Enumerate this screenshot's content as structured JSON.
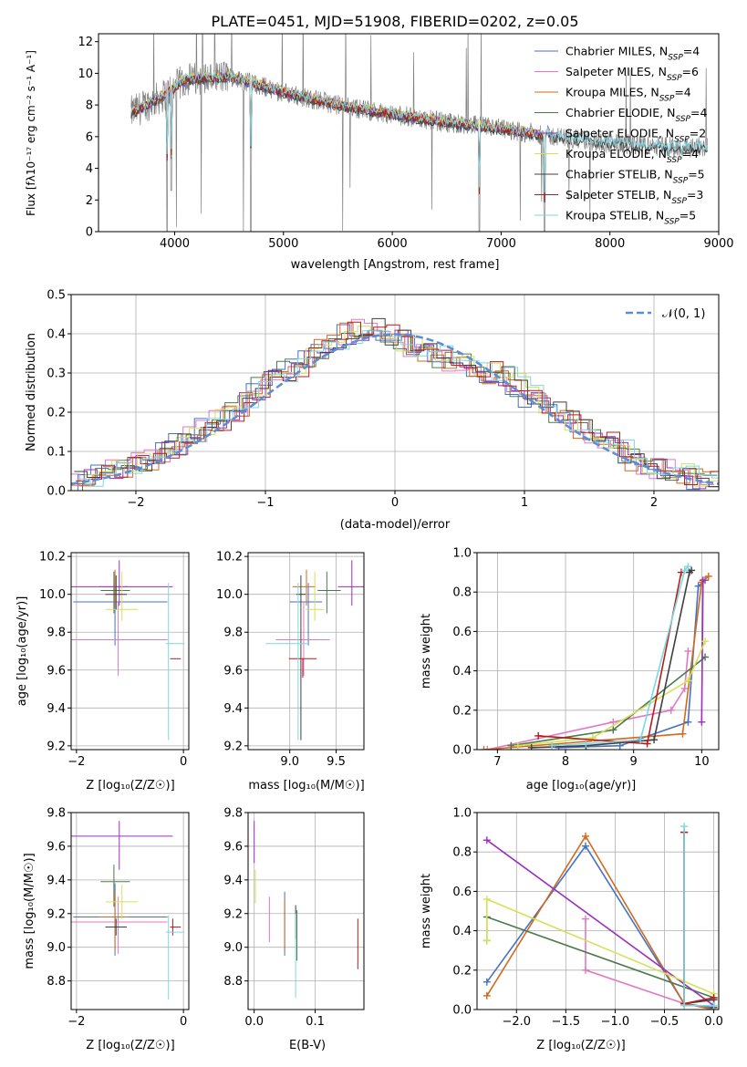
{
  "title": "PLATE=0451, MJD=51908, FIBERID=0202, z=0.05",
  "colors": [
    "#4472c4",
    "#e377c2",
    "#d2691e",
    "#4b7a4b",
    "#9b30c0",
    "#d4e157",
    "#3f3f3f",
    "#b71c1c",
    "#7fd6e0"
  ],
  "legend": [
    "Chabrier MILES, N_SSP=4",
    "Salpeter MILES, N_SSP=6",
    "Kroupa MILES, N_SSP=4",
    "Chabrier ELODIE, N_SSP=4",
    "Salpeter ELODIE, N_SSP=2",
    "Kroupa ELODIE, N_SSP=4",
    "Chabrier STELIB, N_SSP=5",
    "Salpeter STELIB, N_SSP=3",
    "Kroupa STELIB, N_SSP=5"
  ],
  "labels": {
    "p1_x": "wavelength [Angstrom, rest frame]",
    "p1_y": "Flux [fλ10⁻¹⁷ erg cm⁻² s⁻¹ A⁻¹]",
    "p2_x": "(data-model)/error",
    "p2_y": "Normed distribution",
    "p2_legend": "𝒩(0, 1)",
    "p3_x": "Z [log₁₀(Z/Z☉)]",
    "p3_y": "age  [log₁₀(age/yr)]",
    "p4_x": "mass [log₁₀(M/M☉)]",
    "p5_x": "age  [log₁₀(age/yr)]",
    "p5_y": "mass weight",
    "p6_x": "Z [log₁₀(Z/Z☉)]",
    "p6_y": "mass [log₁₀(M/M☉)]",
    "p7_x": "E(B-V)",
    "p8_x": "Z [log₁₀(Z/Z☉)]",
    "p8_y": "mass weight"
  },
  "chart_data": [
    {
      "type": "line",
      "title": "PLATE=0451, MJD=51908, FIBERID=0202, z=0.05",
      "xlabel": "wavelength [Angstrom, rest frame]",
      "ylabel": "Flux [fλ10⁻¹⁷ erg cm⁻² s⁻¹ A⁻¹]",
      "xlim": [
        3300,
        9000
      ],
      "ylim": [
        0,
        12.5
      ],
      "xticks": [
        4000,
        5000,
        6000,
        7000,
        8000,
        9000
      ],
      "yticks": [
        0,
        2,
        4,
        6,
        8,
        10,
        12
      ],
      "data_spectrum_color": "#808080",
      "continuum": {
        "x": [
          3600,
          3900,
          4100,
          4500,
          5000,
          5500,
          6000,
          6500,
          7000,
          7400,
          7600,
          8000,
          8400,
          8900
        ],
        "y": [
          7.5,
          8.6,
          9.6,
          9.8,
          8.8,
          8.0,
          7.4,
          6.9,
          6.5,
          6.1,
          5.9,
          5.6,
          5.4,
          5.3
        ]
      },
      "model_extents": [
        [
          3600,
          7400
        ],
        [
          3600,
          7400
        ],
        [
          3600,
          7400
        ],
        [
          3600,
          7400
        ],
        [
          3600,
          7400
        ],
        [
          3600,
          7400
        ],
        [
          3600,
          8900
        ],
        [
          3600,
          7400
        ],
        [
          3600,
          8900
        ]
      ],
      "dips": [
        {
          "x": 3930,
          "y": 0.0
        },
        {
          "x": 3968,
          "y": 2.6
        },
        {
          "x": 4700,
          "y": 0.0
        },
        {
          "x": 6800,
          "y": 0.0
        },
        {
          "x": 7400,
          "y": 0.0
        },
        {
          "x": 8540,
          "y": 4.8
        },
        {
          "x": 8660,
          "y": 4.9
        }
      ],
      "legend": [
        "Chabrier MILES, N_SSP=4",
        "Salpeter MILES, N_SSP=6",
        "Kroupa MILES, N_SSP=4",
        "Chabrier ELODIE, N_SSP=4",
        "Salpeter ELODIE, N_SSP=2",
        "Kroupa ELODIE, N_SSP=4",
        "Chabrier STELIB, N_SSP=5",
        "Salpeter STELIB, N_SSP=3",
        "Kroupa STELIB, N_SSP=5"
      ],
      "legend_position": "top-right"
    },
    {
      "type": "area",
      "xlabel": "(data-model)/error",
      "ylabel": "Normed distribution",
      "xlim": [
        -2.5,
        2.5
      ],
      "ylim": [
        0,
        0.5
      ],
      "xticks": [
        -2,
        -1,
        0,
        1,
        2
      ],
      "yticks": [
        0.0,
        0.1,
        0.2,
        0.3,
        0.4,
        0.5
      ],
      "bins": {
        "start": -2.5,
        "width": 0.1,
        "count": 50
      },
      "histogram_envelope": [
        0.02,
        0.03,
        0.04,
        0.05,
        0.06,
        0.07,
        0.08,
        0.1,
        0.12,
        0.14,
        0.16,
        0.18,
        0.2,
        0.22,
        0.26,
        0.28,
        0.3,
        0.32,
        0.34,
        0.36,
        0.38,
        0.4,
        0.41,
        0.41,
        0.4,
        0.38,
        0.37,
        0.36,
        0.34,
        0.33,
        0.32,
        0.31,
        0.3,
        0.29,
        0.27,
        0.24,
        0.22,
        0.2,
        0.18,
        0.16,
        0.14,
        0.12,
        0.1,
        0.08,
        0.07,
        0.06,
        0.05,
        0.04,
        0.03,
        0.02
      ],
      "series": [
        {
          "name": "𝒩(0, 1)",
          "style": "dashed",
          "color": "#5b8dd6"
        }
      ],
      "grid": true,
      "legend_position": "top-right"
    },
    {
      "type": "scatter",
      "xlabel": "Z [log₁₀(Z/Z☉)]",
      "ylabel": "age  [log₁₀(age/yr)]",
      "xlim": [
        -2.1,
        0.1
      ],
      "ylim": [
        9.18,
        10.22
      ],
      "xticks": [
        -2,
        0
      ],
      "yticks": [
        9.2,
        9.4,
        9.6,
        9.8,
        10.0,
        10.2
      ],
      "points": [
        {
          "x": -1.28,
          "y": 9.96,
          "xerr": [
            0.78,
            0.98
          ],
          "yerr": [
            0.23,
            0.1
          ]
        },
        {
          "x": -1.22,
          "y": 9.76,
          "xerr": [
            0.88,
            0.92
          ],
          "yerr": [
            0.19,
            0.2
          ]
        },
        {
          "x": -1.28,
          "y": 10.04,
          "xerr": [
            0.3,
            0.25
          ],
          "yerr": [
            0.1,
            0.09
          ]
        },
        {
          "x": -1.3,
          "y": 10.02,
          "xerr": [
            0.25,
            0.3
          ],
          "yerr": [
            0.12,
            0.1
          ]
        },
        {
          "x": -1.2,
          "y": 10.04,
          "xerr": [
            0.9,
            1.0
          ],
          "yerr": [
            0.1,
            0.14
          ]
        },
        {
          "x": -1.15,
          "y": 9.92,
          "xerr": [
            0.3,
            0.3
          ],
          "yerr": [
            0.06,
            0.2
          ]
        },
        {
          "x": -1.26,
          "y": 10.0,
          "xerr": [
            0.2,
            0.2
          ],
          "yerr": [
            0.08,
            0.1
          ]
        },
        {
          "x": -0.2,
          "y": 9.66,
          "xerr": [
            0.05,
            0.15
          ],
          "yerr": [
            0.0,
            0.0
          ]
        },
        {
          "x": -0.28,
          "y": 9.74,
          "xerr": [
            0.05,
            0.3
          ],
          "yerr": [
            0.51,
            0.32
          ]
        }
      ],
      "grid": true
    },
    {
      "type": "scatter",
      "xlabel": "mass [log₁₀(M/M☉)]",
      "xlim": [
        8.55,
        9.8
      ],
      "ylim": [
        9.18,
        10.22
      ],
      "xticks": [
        9.0,
        9.5
      ],
      "yticks": [
        9.2,
        9.4,
        9.6,
        9.8,
        10.0,
        10.2
      ],
      "points": [
        {
          "x": 9.2,
          "y": 9.96,
          "xerr": [
            0.2,
            0.15
          ],
          "yerr": [
            0.23,
            0.1
          ]
        },
        {
          "x": 9.15,
          "y": 9.76,
          "xerr": [
            0.3,
            0.28
          ],
          "yerr": [
            0.19,
            0.2
          ]
        },
        {
          "x": 9.18,
          "y": 10.04,
          "xerr": [
            0.15,
            0.1
          ],
          "yerr": [
            0.1,
            0.09
          ]
        },
        {
          "x": 9.4,
          "y": 10.02,
          "xerr": [
            0.1,
            0.15
          ],
          "yerr": [
            0.12,
            0.1
          ]
        },
        {
          "x": 9.67,
          "y": 10.04,
          "xerr": [
            0.15,
            0.15
          ],
          "yerr": [
            0.1,
            0.14
          ]
        },
        {
          "x": 9.27,
          "y": 9.92,
          "xerr": [
            0.1,
            0.1
          ],
          "yerr": [
            0.06,
            0.2
          ]
        },
        {
          "x": 9.12,
          "y": 10.0,
          "xerr": [
            0.05,
            0.05
          ],
          "yerr": [
            0.77,
            0.1
          ]
        },
        {
          "x": 9.14,
          "y": 9.66,
          "xerr": [
            0.15,
            0.15
          ],
          "yerr": [
            0.1,
            0.0
          ]
        },
        {
          "x": 9.09,
          "y": 9.74,
          "xerr": [
            0.35,
            0.1
          ],
          "yerr": [
            0.51,
            0.32
          ]
        }
      ],
      "grid": true
    },
    {
      "type": "line",
      "xlabel": "age  [log₁₀(age/yr)]",
      "ylabel": "mass weight",
      "xlim": [
        6.7,
        10.25
      ],
      "ylim": [
        0,
        1.0
      ],
      "xticks": [
        7,
        8,
        9,
        10
      ],
      "yticks": [
        0.0,
        0.2,
        0.4,
        0.6,
        0.8,
        1.0
      ],
      "series": [
        {
          "x": [
            7.9,
            8.8,
            9.8,
            9.95,
            10.05
          ],
          "y": [
            0.01,
            0.02,
            0.14,
            0.83,
            0.86
          ]
        },
        {
          "x": [
            6.85,
            8.7,
            9.55,
            9.75,
            9.8
          ],
          "y": [
            0.0,
            0.14,
            0.2,
            0.31,
            0.5
          ]
        },
        {
          "x": [
            6.8,
            9.72,
            10.0,
            10.1
          ],
          "y": [
            0.0,
            0.08,
            0.85,
            0.88
          ]
        },
        {
          "x": [
            7.2,
            8.7,
            10.05
          ],
          "y": [
            0.02,
            0.1,
            0.47
          ]
        },
        {
          "x": [
            10.0,
            10.02
          ],
          "y": [
            0.14,
            0.86
          ]
        },
        {
          "x": [
            7.3,
            8.4,
            9.8,
            10.05
          ],
          "y": [
            0.02,
            0.06,
            0.35,
            0.55
          ]
        },
        {
          "x": [
            7.5,
            8.3,
            9.3,
            9.82,
            9.85
          ],
          "y": [
            0.01,
            0.02,
            0.05,
            0.9,
            0.91
          ]
        },
        {
          "x": [
            7.6,
            9.2,
            9.7
          ],
          "y": [
            0.07,
            0.03,
            0.9
          ]
        },
        {
          "x": [
            7.8,
            8.3,
            9.1,
            9.75,
            9.8
          ],
          "y": [
            0.02,
            0.03,
            0.05,
            0.91,
            0.93
          ]
        }
      ],
      "grid": true
    },
    {
      "type": "scatter",
      "xlabel": "Z [log₁₀(Z/Z☉)]",
      "ylabel": "mass [log₁₀(M/M☉)]",
      "xlim": [
        -2.1,
        0.1
      ],
      "ylim": [
        8.63,
        9.8
      ],
      "xticks": [
        -2,
        0
      ],
      "yticks": [
        8.8,
        9.0,
        9.2,
        9.4,
        9.6,
        9.8
      ],
      "points": [
        {
          "x": -1.28,
          "y": 9.18,
          "xerr": [
            0.78,
            0.98
          ],
          "yerr": [
            0.23,
            0.2
          ]
        },
        {
          "x": -1.22,
          "y": 9.15,
          "xerr": [
            0.88,
            0.92
          ],
          "yerr": [
            0.19,
            0.15
          ]
        },
        {
          "x": -1.28,
          "y": 9.18,
          "xerr": [
            0.3,
            0.25
          ],
          "yerr": [
            0.2,
            0.15
          ]
        },
        {
          "x": -1.3,
          "y": 9.39,
          "xerr": [
            0.25,
            0.3
          ],
          "yerr": [
            0.15,
            0.1
          ]
        },
        {
          "x": -1.2,
          "y": 9.66,
          "xerr": [
            0.9,
            1.0
          ],
          "yerr": [
            0.2,
            0.09
          ]
        },
        {
          "x": -1.15,
          "y": 9.27,
          "xerr": [
            0.3,
            0.3
          ],
          "yerr": [
            0.1,
            0.1
          ]
        },
        {
          "x": -1.26,
          "y": 9.12,
          "xerr": [
            0.2,
            0.2
          ],
          "yerr": [
            0.05,
            0.05
          ]
        },
        {
          "x": -0.2,
          "y": 9.12,
          "xerr": [
            0.05,
            0.15
          ],
          "yerr": [
            0.05,
            0.05
          ]
        },
        {
          "x": -0.28,
          "y": 9.09,
          "xerr": [
            0.05,
            0.3
          ],
          "yerr": [
            0.4,
            0.1
          ]
        }
      ],
      "grid": true
    },
    {
      "type": "scatter",
      "xlabel": "E(B-V)",
      "xlim": [
        -0.01,
        0.18
      ],
      "ylim": [
        8.63,
        9.8
      ],
      "xticks": [
        0.0,
        0.1
      ],
      "yticks": [
        8.8,
        9.0,
        9.2,
        9.4,
        9.6,
        9.8
      ],
      "points": [
        {
          "x": 0.05,
          "y": 9.18,
          "yerr": [
            0.23,
            0.15
          ]
        },
        {
          "x": 0.025,
          "y": 9.15,
          "yerr": [
            0.12,
            0.15
          ]
        },
        {
          "x": 0.05,
          "y": 9.18,
          "yerr": [
            0.2,
            0.1
          ]
        },
        {
          "x": 0.07,
          "y": 9.12,
          "yerr": [
            0.2,
            0.1
          ]
        },
        {
          "x": 0.0,
          "y": 9.6,
          "yerr": [
            0.1,
            0.15
          ]
        },
        {
          "x": 0.002,
          "y": 9.36,
          "yerr": [
            0.1,
            0.1
          ]
        },
        {
          "x": 0.068,
          "y": 9.1,
          "yerr": [
            0.05,
            0.15
          ]
        },
        {
          "x": 0.17,
          "y": 9.02,
          "yerr": [
            0.15,
            0.15
          ]
        },
        {
          "x": 0.068,
          "y": 9.05,
          "yerr": [
            0.35,
            0.15
          ]
        }
      ],
      "grid": true
    },
    {
      "type": "line",
      "xlabel": "Z [log₁₀(Z/Z☉)]",
      "ylabel": "mass weight",
      "xlim": [
        -2.4,
        0.05
      ],
      "ylim": [
        0,
        1.0
      ],
      "xticks": [
        -2.0,
        -1.5,
        -1.0,
        -0.5,
        0.0
      ],
      "yticks": [
        0.0,
        0.2,
        0.4,
        0.6,
        0.8,
        1.0
      ],
      "series": [
        {
          "x": [
            -2.3,
            -1.3,
            -0.3,
            -0.02
          ],
          "y": [
            0.14,
            0.83,
            0.03,
            0.01
          ]
        },
        {
          "x": [
            -1.3,
            -1.3,
            -0.3
          ],
          "y": [
            0.46,
            0.2,
            0.03
          ]
        },
        {
          "x": [
            -2.3,
            -1.3,
            -0.3,
            0.0
          ],
          "y": [
            0.07,
            0.88,
            0.03,
            0.0
          ]
        },
        {
          "x": [
            -2.3,
            -2.3,
            0.0
          ],
          "y": [
            0.35,
            0.47,
            0.06
          ]
        },
        {
          "x": [
            -2.3,
            0.0
          ],
          "y": [
            0.86,
            0.02
          ]
        },
        {
          "x": [
            -2.3,
            -2.3,
            0.0
          ],
          "y": [
            0.35,
            0.56,
            0.08
          ]
        },
        {
          "x": [
            -0.3,
            -0.3,
            0.0,
            0.0
          ],
          "y": [
            0.9,
            0.03,
            0.05,
            0.01
          ]
        },
        {
          "x": [
            -0.3,
            -0.3,
            0.0
          ],
          "y": [
            0.9,
            0.03,
            0.06
          ]
        },
        {
          "x": [
            -0.3,
            -0.3,
            0.0
          ],
          "y": [
            0.93,
            0.02,
            0.02
          ]
        }
      ],
      "grid": true
    }
  ]
}
